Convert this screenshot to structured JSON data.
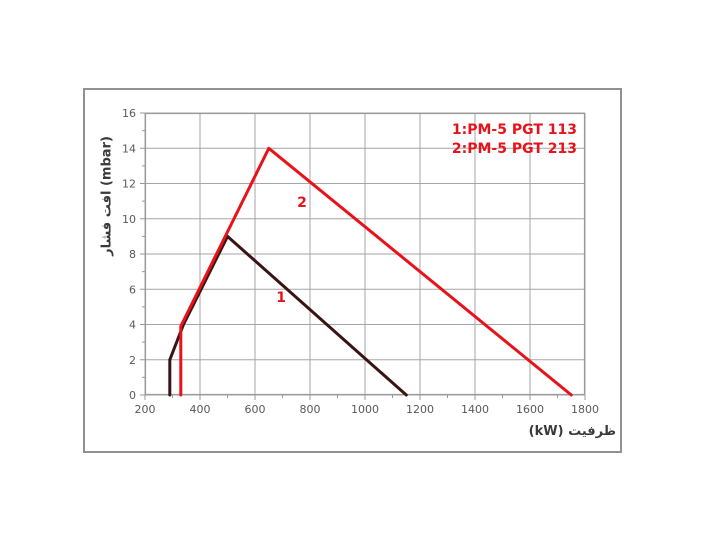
{
  "window": {
    "background": "#ffffff"
  },
  "chart_data": {
    "type": "line",
    "title": "",
    "xlabel": "ظرفیت (kW)",
    "ylabel": "افت فشار (mbar)",
    "xlim": [
      200,
      1800
    ],
    "ylim": [
      0,
      16
    ],
    "x_ticks": [
      200,
      400,
      600,
      800,
      1000,
      1200,
      1400,
      1600,
      1800
    ],
    "y_ticks": [
      0,
      2,
      4,
      6,
      8,
      10,
      12,
      14,
      16
    ],
    "x_minor_step": 100,
    "y_minor_step": 1,
    "grid": true,
    "grid_color": "#a6a6a6",
    "border_color": "#999999",
    "axis_text_color": "#595959",
    "title_color": "#3a3a3a",
    "legend_position": "top-right",
    "legend_color": "#e8121a",
    "series": [
      {
        "name": "1:PM-5 PGT 113",
        "point_label": "1",
        "color": "#3a1413",
        "points": [
          [
            290,
            0
          ],
          [
            290,
            2
          ],
          [
            340,
            4
          ],
          [
            500,
            9
          ],
          [
            1150,
            0
          ]
        ],
        "label_at": [
          695,
          5.5
        ]
      },
      {
        "name": "2:PM-5 PGT 213",
        "point_label": "2",
        "color": "#e8121a",
        "points": [
          [
            330,
            0
          ],
          [
            330,
            3.9
          ],
          [
            650,
            14
          ],
          [
            1750,
            0
          ]
        ],
        "label_at": [
          771,
          10.9
        ]
      }
    ]
  }
}
